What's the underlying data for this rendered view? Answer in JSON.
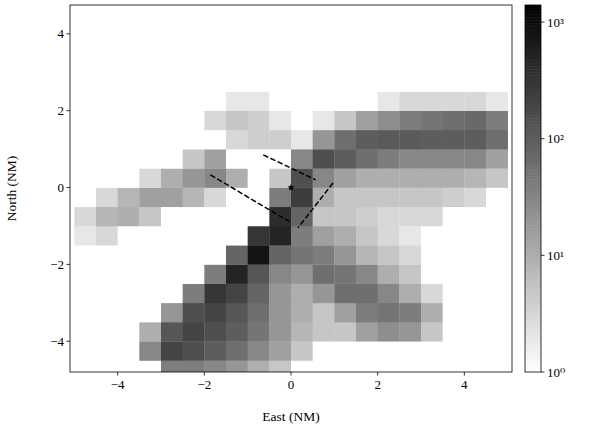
{
  "chart_data": {
    "type": "heatmap",
    "x_label": "East (NM)",
    "y_label": "North (NM)",
    "xlim": [
      -5.1,
      5.1
    ],
    "ylim": [
      -4.8,
      4.75
    ],
    "xticks": [
      {
        "value": -4,
        "label": "−4"
      },
      {
        "value": -2,
        "label": "−2"
      },
      0,
      2,
      4
    ],
    "yticks": [
      {
        "value": -4,
        "label": "−4"
      },
      {
        "value": -2,
        "label": "−2"
      },
      0,
      2,
      4
    ],
    "log": true,
    "x_edges": [
      -5,
      -4.5,
      -4,
      -3.5,
      -3,
      -2.5,
      -2,
      -1.5,
      -1,
      -0.5,
      0,
      0.5,
      1,
      1.5,
      2,
      2.5,
      3,
      3.5,
      4,
      4.5,
      5
    ],
    "y_edges": [
      -5,
      -4.5,
      -4,
      -3.5,
      -3,
      -2.5,
      -2,
      -1.5,
      -1,
      -0.5,
      0,
      0.5,
      1,
      1.5,
      2,
      2.5,
      3,
      3.5,
      4,
      4.5,
      5
    ],
    "values": [
      [
        0,
        0,
        0,
        0,
        40,
        40,
        30,
        20,
        10,
        5,
        0,
        0,
        0,
        0,
        0,
        0,
        0,
        0,
        0,
        0
      ],
      [
        0,
        0,
        0,
        30,
        200,
        150,
        100,
        60,
        30,
        15,
        5,
        0,
        0,
        0,
        0,
        0,
        0,
        0,
        0,
        0
      ],
      [
        0,
        0,
        0,
        10,
        120,
        200,
        150,
        100,
        50,
        20,
        8,
        5,
        5,
        15,
        25,
        20,
        5,
        0,
        0,
        0
      ],
      [
        0,
        0,
        0,
        0,
        20,
        150,
        200,
        120,
        60,
        20,
        10,
        5,
        15,
        40,
        50,
        40,
        10,
        0,
        0,
        0
      ],
      [
        0,
        0,
        0,
        0,
        0,
        40,
        300,
        200,
        80,
        20,
        10,
        20,
        60,
        60,
        30,
        10,
        3,
        0,
        0,
        0
      ],
      [
        0,
        0,
        0,
        0,
        0,
        0,
        40,
        500,
        120,
        30,
        20,
        60,
        50,
        30,
        10,
        5,
        0,
        0,
        0,
        0
      ],
      [
        0,
        0,
        0,
        0,
        0,
        0,
        0,
        80,
        800,
        80,
        50,
        40,
        20,
        8,
        5,
        3,
        0,
        0,
        0,
        0
      ],
      [
        2,
        3,
        0,
        0,
        0,
        0,
        0,
        0,
        300,
        500,
        40,
        15,
        10,
        5,
        3,
        2,
        0,
        0,
        0,
        0
      ],
      [
        3,
        8,
        10,
        5,
        0,
        0,
        0,
        0,
        0,
        400,
        80,
        5,
        5,
        4,
        3,
        3,
        3,
        0,
        0,
        0
      ],
      [
        0,
        3,
        8,
        15,
        15,
        8,
        3,
        0,
        0,
        40,
        250,
        10,
        5,
        5,
        5,
        5,
        5,
        4,
        3,
        0
      ],
      [
        0,
        0,
        0,
        3,
        10,
        20,
        30,
        10,
        0,
        5,
        150,
        30,
        15,
        10,
        10,
        10,
        10,
        10,
        8,
        5
      ],
      [
        0,
        0,
        0,
        0,
        0,
        5,
        15,
        0,
        0,
        0,
        30,
        150,
        100,
        60,
        40,
        30,
        30,
        30,
        30,
        15
      ],
      [
        0,
        0,
        0,
        0,
        0,
        0,
        0,
        3,
        4,
        4,
        2,
        20,
        60,
        100,
        110,
        110,
        100,
        100,
        100,
        60
      ],
      [
        0,
        0,
        0,
        0,
        0,
        0,
        3,
        5,
        4,
        2,
        0,
        2,
        5,
        15,
        25,
        40,
        50,
        60,
        70,
        40
      ],
      [
        0,
        0,
        0,
        0,
        0,
        0,
        0,
        2,
        2,
        0,
        0,
        0,
        0,
        0,
        2,
        3,
        3,
        3,
        3,
        2
      ],
      [
        0,
        0,
        0,
        0,
        0,
        0,
        0,
        0,
        0,
        0,
        0,
        0,
        0,
        0,
        0,
        0,
        1,
        0,
        0,
        0
      ],
      [
        0,
        0,
        0,
        0,
        0,
        0,
        0,
        0,
        0,
        0,
        0,
        0,
        0,
        0,
        0,
        0,
        0,
        0,
        0,
        0
      ],
      [
        0,
        0,
        0,
        0,
        0,
        0,
        0,
        0,
        0,
        0,
        0,
        0,
        0,
        0,
        0,
        0,
        0,
        0,
        0,
        0
      ],
      [
        0,
        0,
        0,
        0,
        0,
        0,
        0,
        0,
        0,
        0,
        0,
        0,
        0,
        0,
        0,
        0,
        0,
        0,
        0,
        0
      ],
      [
        0,
        0,
        0,
        0,
        0,
        0,
        0,
        0,
        0,
        0,
        0,
        0,
        0,
        0,
        0,
        0,
        0,
        0,
        0,
        0
      ]
    ],
    "colorbar": {
      "range": [
        1,
        1400
      ],
      "ticks": [
        {
          "value": 1,
          "label": "10⁰"
        },
        {
          "value": 10,
          "label": "10¹"
        },
        {
          "value": 100,
          "label": "10²"
        },
        {
          "value": 1000,
          "label": "10³"
        }
      ]
    },
    "lines": [
      {
        "x": [
          -1.86,
          -0.02
        ],
        "y": [
          0.33,
          -0.9
        ],
        "color": "#000000",
        "line_style": "dashed"
      },
      {
        "x": [
          -0.64,
          0.57
        ],
        "y": [
          0.85,
          0.2
        ],
        "color": "#000000",
        "line_style": "dashed"
      },
      {
        "x": [
          0.97,
          0.16
        ],
        "y": [
          0.12,
          -1.05
        ],
        "color": "#000000",
        "line_style": "dashed"
      }
    ],
    "points": {
      "x": [
        0
      ],
      "y": [
        0
      ],
      "marker": "star",
      "color": "#000000"
    }
  }
}
